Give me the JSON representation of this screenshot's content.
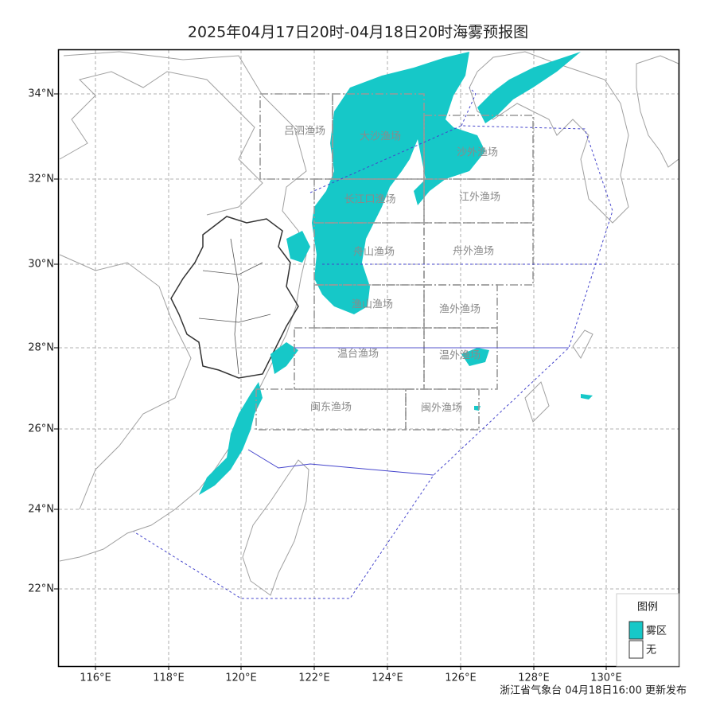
{
  "title": "2025年04月17日20时-04月18日20时海雾预报图",
  "x_axis_labels": [
    "116°E",
    "118°E",
    "120°E",
    "122°E",
    "124°E",
    "126°E",
    "128°E",
    "130°E"
  ],
  "y_axis_labels": [
    "34°N",
    "32°N",
    "30°N",
    "28°N",
    "26°N",
    "24°N",
    "22°N"
  ],
  "zones": [
    "吕泗渔场",
    "大沙渔场",
    "沙外渔场",
    "长江口渔场",
    "江外渔场",
    "舟山渔场",
    "舟外渔场",
    "渔山渔场",
    "渔外渔场",
    "温台渔场",
    "温外渔场",
    "闽东渔场",
    "闽外渔场"
  ],
  "legend": {
    "title": "图例",
    "items": [
      "雾区",
      "无"
    ]
  },
  "footer": "浙江省气象台 04月18日16:00 更新发布"
}
